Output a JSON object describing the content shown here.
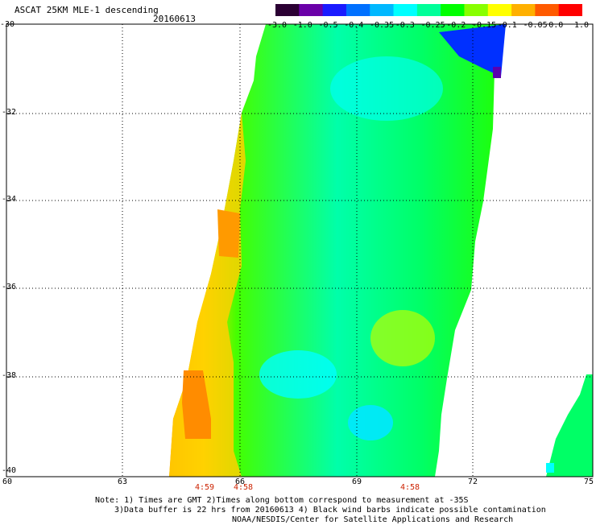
{
  "header": {
    "title": "ASCAT 25KM MLE-1 descending",
    "date": "20160613"
  },
  "colorbar": {
    "labels": [
      "-3.0",
      "-1.0",
      "-0.5",
      "-0.4",
      "-0.35",
      "-0.3",
      "-0.25",
      "-0.2",
      "-0.15",
      "-0.1",
      "-0.05",
      "0.0",
      "1.0"
    ],
    "colors": [
      "#2b0033",
      "#6a00a8",
      "#1a1aff",
      "#0070ff",
      "#00b8ff",
      "#00ffff",
      "#00ff99",
      "#00ff00",
      "#88ff00",
      "#ffff00",
      "#ffb000",
      "#ff5a00",
      "#ff0000"
    ]
  },
  "axes": {
    "lat_labels": [
      "-30",
      "-32",
      "-34",
      "-36",
      "-38",
      "-40"
    ],
    "lon_labels": [
      "60",
      "63",
      "66",
      "69",
      "72",
      "75"
    ]
  },
  "times": [
    "4:59",
    "4:58",
    "4:58"
  ],
  "note": {
    "line1": "Note: 1) Times are GMT 2)Times along bottom correspond to measurement at -35S",
    "line2": "3)Data buffer is 22 hrs from 20160613 4) Black wind barbs indicate possible contamination",
    "line3": "NOAA/NESDIS/Center for Satellite Applications and Research"
  }
}
